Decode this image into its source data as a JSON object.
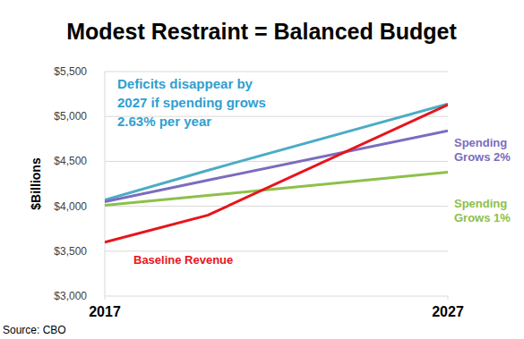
{
  "chart_data": {
    "type": "line",
    "title": "Modest Restraint = Balanced Budget",
    "y_label": "$Billions",
    "source": "Source: CBO",
    "x": [
      2017,
      2020,
      2027
    ],
    "xlim": [
      2017,
      2027
    ],
    "xticks": [
      2017,
      2027
    ],
    "ylim": [
      3000,
      5500
    ],
    "yticks": [
      {
        "value": 3000,
        "label": "$3,000"
      },
      {
        "value": 3500,
        "label": "$3,500"
      },
      {
        "value": 4000,
        "label": "$4,000"
      },
      {
        "value": 4500,
        "label": "$4,500"
      },
      {
        "value": 5000,
        "label": "$5,000"
      },
      {
        "value": 5500,
        "label": "$5,500"
      }
    ],
    "grid": true,
    "series": [
      {
        "color": "#4bacc6",
        "values": [
          4070,
          4400,
          5140
        ]
      },
      {
        "name": "Spending Grows 2%",
        "color": "#7b6cbf",
        "values": [
          4050,
          4290,
          4840
        ]
      },
      {
        "name": "Spending Grows 1%",
        "color": "#8dc04a",
        "values": [
          4010,
          4120,
          4380
        ]
      },
      {
        "name": "Baseline Revenue",
        "color": "#e8141b",
        "values": [
          3600,
          3900,
          5130
        ]
      }
    ],
    "annotations": [
      {
        "text": [
          "Deficits disappear by",
          "2027 if spending grows",
          "2.63% per year"
        ],
        "color": "#2f9fd0"
      }
    ]
  }
}
